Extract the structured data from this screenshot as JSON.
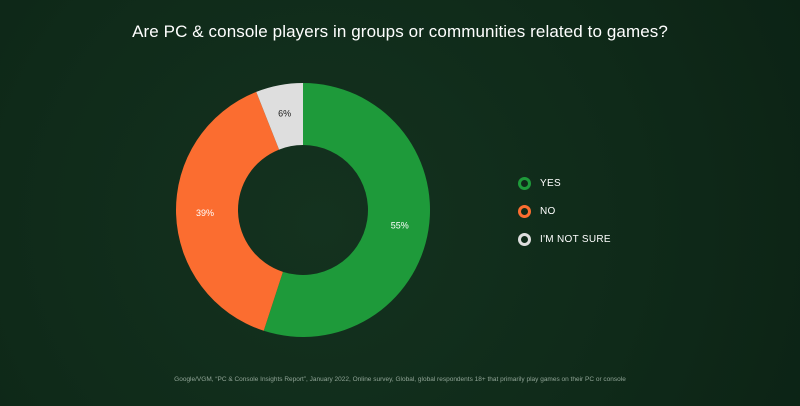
{
  "chart_data": {
    "type": "pie",
    "title": "Are PC & console players in groups or communities related to games?",
    "slices": [
      {
        "label": "YES",
        "value": 55,
        "display": "55%",
        "color": "#1e9a3a"
      },
      {
        "label": "NO",
        "value": 39,
        "display": "39%",
        "color": "#fb6d30"
      },
      {
        "label": "I'M NOT SURE",
        "value": 6,
        "display": "6%",
        "color": "#dedede"
      }
    ],
    "donut": true,
    "legend_position": "right"
  },
  "source_note": "Google/VGM, “PC & Console Insights Report”, January 2022, Online survey, Global, global respondents 18+ that primarily play games on their PC or console",
  "colors": {
    "background": "#0f2a19",
    "text": "#ffffff"
  }
}
